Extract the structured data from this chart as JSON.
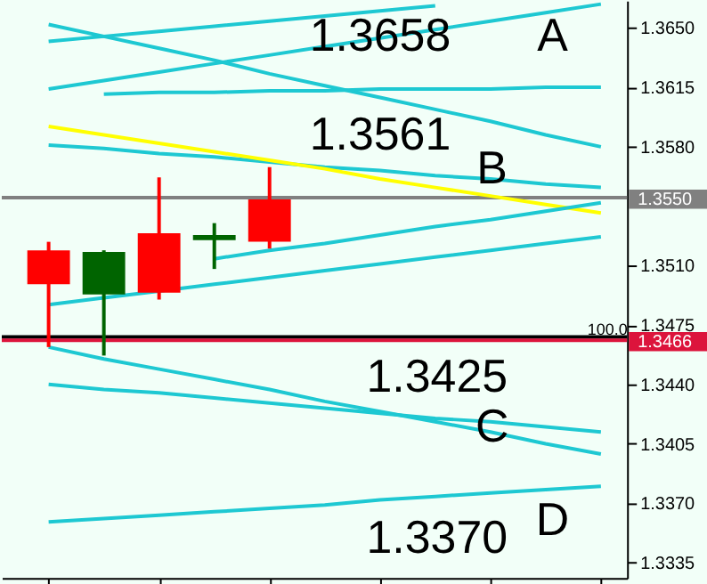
{
  "chart_data": {
    "type": "candlestick",
    "categories": [
      null,
      null,
      null,
      null,
      null,
      null,
      null,
      null,
      null,
      null,
      null
    ],
    "ohlc": [
      [
        1.3519,
        1.3524,
        1.3462,
        1.3499
      ],
      [
        1.3493,
        1.3519,
        1.3457,
        1.3518
      ],
      [
        1.3529,
        1.3562,
        1.349,
        1.3494
      ],
      [
        1.3525,
        1.3535,
        1.3508,
        1.3528
      ],
      [
        1.3549,
        1.3568,
        1.352,
        1.3524
      ],
      null,
      null,
      null,
      null,
      null,
      null
    ],
    "colors": [
      "#ff0000",
      "#006400",
      "#ff0000",
      "#006400",
      "#ff0000",
      null,
      null,
      null,
      null,
      null,
      null
    ],
    "series": [
      {
        "type": "line",
        "color": "#1ec8d2",
        "values": [
          1.3652,
          1.3645,
          1.3638,
          1.3631,
          1.3623,
          1.3616,
          1.3609,
          1.3602,
          1.3595,
          1.3587,
          1.358
        ]
      },
      {
        "type": "line",
        "color": "#1ec8d2",
        "values": [
          1.3614,
          1.3619,
          1.3624,
          1.3629,
          1.3634,
          1.3639,
          1.3644,
          1.3649,
          1.3654,
          1.3659,
          1.3664
        ]
      },
      {
        "type": "line",
        "color": "#1ec8d2",
        "values": [
          1.3642,
          1.3645,
          1.3648,
          1.3651,
          1.3654,
          1.3657,
          1.366,
          1.3663,
          null,
          null,
          null
        ]
      },
      {
        "type": "line",
        "color": "#1ec8d2",
        "values": [
          null,
          1.3611,
          1.3612,
          1.3612,
          1.3613,
          1.3613,
          1.3614,
          1.3614,
          1.3614,
          1.3615,
          1.3615
        ]
      },
      {
        "type": "line",
        "color": "#1ec8d2",
        "values": [
          1.3581,
          1.3579,
          1.3576,
          1.3574,
          1.3571,
          1.3568,
          1.3566,
          1.3563,
          1.3561,
          1.3558,
          1.3556
        ]
      },
      {
        "type": "line",
        "color": "#ffff00",
        "values": [
          1.3592,
          1.3587,
          1.3582,
          1.3577,
          1.3572,
          1.3567,
          1.3561,
          1.3556,
          1.3551,
          1.3546,
          1.3541
        ]
      },
      {
        "type": "line",
        "color": "#1ec8d2",
        "values": [
          null,
          null,
          null,
          1.3514,
          1.3519,
          1.3523,
          1.3528,
          1.3533,
          1.3537,
          1.3542,
          1.3547
        ]
      },
      {
        "type": "line",
        "color": "#1ec8d2",
        "values": [
          1.3487,
          1.3491,
          1.3495,
          1.3499,
          1.3503,
          1.3507,
          1.3511,
          1.3515,
          1.3519,
          1.3523,
          1.3527
        ]
      },
      {
        "type": "line",
        "color": "#1ec8d2",
        "values": [
          1.3462,
          1.3455,
          1.3449,
          1.3443,
          1.3437,
          1.343,
          1.3424,
          1.3418,
          1.3412,
          1.3405,
          1.3399
        ]
      },
      {
        "type": "line",
        "color": "#1ec8d2",
        "values": [
          1.344,
          1.3437,
          1.3435,
          1.3432,
          1.3429,
          1.3426,
          1.3423,
          1.342,
          1.3418,
          1.3415,
          1.3412
        ]
      },
      {
        "type": "line",
        "color": "#1ec8d2",
        "values": [
          1.3359,
          1.3361,
          1.3363,
          1.3365,
          1.3367,
          1.3369,
          1.3372,
          1.3374,
          1.3376,
          1.3378,
          1.338
        ]
      }
    ],
    "ref_lines": [
      {
        "axis": "y",
        "value": 1.355,
        "label": "1.3550",
        "color": "#808080"
      },
      {
        "axis": "y",
        "value": 1.3468,
        "label": null,
        "color": "#000000"
      },
      {
        "axis": "y",
        "value": 1.3466,
        "label": "1.3466",
        "color": "#dc143c"
      }
    ],
    "annotations": [
      "1.3658",
      "A",
      "1.3561",
      "B",
      "1.3425",
      "C",
      "1.3370",
      "D",
      "100.0"
    ],
    "ylim": [
      1.3326,
      1.3666
    ],
    "yticks": [
      {
        "value": 1.365,
        "label": "1.3650"
      },
      {
        "value": 1.3615,
        "label": "1.3615"
      },
      {
        "value": 1.358,
        "label": "1.3580"
      },
      {
        "value": 1.351,
        "label": "1.3510"
      },
      {
        "value": 1.3475,
        "label": "1.3475"
      },
      {
        "value": 1.344,
        "label": "1.3440"
      },
      {
        "value": 1.3405,
        "label": "1.3405"
      },
      {
        "value": 1.337,
        "label": "1.3370"
      },
      {
        "value": 1.3335,
        "label": "1.3335"
      }
    ],
    "tick_labels": "y",
    "grid": false
  }
}
